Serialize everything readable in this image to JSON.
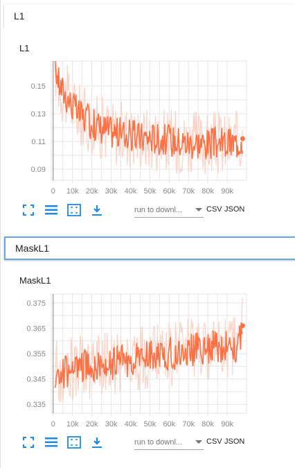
{
  "sections": [
    {
      "header": "L1",
      "chart_title": "L1",
      "toolbar": {
        "run_select_placeholder": "run to downl...",
        "csv_label": "CSV",
        "json_label": "JSON"
      }
    },
    {
      "header": "MaskL1",
      "chart_title": "MaskL1",
      "toolbar": {
        "run_select_placeholder": "run to downl...",
        "csv_label": "CSV",
        "json_label": "JSON"
      }
    }
  ],
  "colors": {
    "smoothed_line": "#ff7043",
    "raw_line": "#fbd2c5",
    "grid": "#e6e6e6",
    "axis_marker": "#888888",
    "icon_blue": "#1e88e5",
    "active_header_border": "#6aa7dd"
  },
  "icons": [
    "fullscreen-icon",
    "list-icon",
    "fit-domain-icon",
    "download-icon",
    "dropdown-arrow-icon"
  ],
  "chart_data": [
    {
      "type": "line",
      "title": "L1",
      "x_ticks": [
        "0",
        "10k",
        "20k",
        "30k",
        "40k",
        "50k",
        "60k",
        "70k",
        "80k",
        "90k"
      ],
      "y_ticks": [
        "0.15",
        "0.13",
        "0.11",
        "0.09"
      ],
      "xlim": [
        -1000,
        100000
      ],
      "ylim": [
        0.082,
        0.168
      ],
      "series": [
        {
          "x": [
            1000,
            3000,
            5000,
            8000,
            10000,
            13000,
            16000,
            20000,
            25000,
            30000,
            35000,
            40000,
            45000,
            50000,
            55000,
            60000,
            65000,
            70000,
            75000,
            80000,
            85000,
            90000,
            95000,
            98000
          ],
          "values": [
            0.165,
            0.152,
            0.146,
            0.14,
            0.136,
            0.13,
            0.127,
            0.123,
            0.12,
            0.117,
            0.116,
            0.114,
            0.113,
            0.113,
            0.112,
            0.111,
            0.11,
            0.109,
            0.109,
            0.108,
            0.109,
            0.108,
            0.109,
            0.112
          ]
        }
      ]
    },
    {
      "type": "line",
      "title": "MaskL1",
      "x_ticks": [
        "0",
        "10k",
        "20k",
        "30k",
        "40k",
        "50k",
        "60k",
        "70k",
        "80k",
        "90k"
      ],
      "y_ticks": [
        "0.375",
        "0.365",
        "0.355",
        "0.345",
        "0.335"
      ],
      "xlim": [
        -1000,
        100000
      ],
      "ylim": [
        0.3315,
        0.3785
      ],
      "series": [
        {
          "x": [
            1000,
            5000,
            10000,
            15000,
            20000,
            25000,
            30000,
            35000,
            40000,
            45000,
            50000,
            55000,
            60000,
            65000,
            70000,
            75000,
            80000,
            85000,
            90000,
            95000,
            98000
          ],
          "values": [
            0.348,
            0.347,
            0.349,
            0.35,
            0.35,
            0.351,
            0.351,
            0.352,
            0.352,
            0.353,
            0.354,
            0.354,
            0.355,
            0.355,
            0.356,
            0.357,
            0.357,
            0.358,
            0.358,
            0.358,
            0.366
          ]
        }
      ]
    }
  ]
}
